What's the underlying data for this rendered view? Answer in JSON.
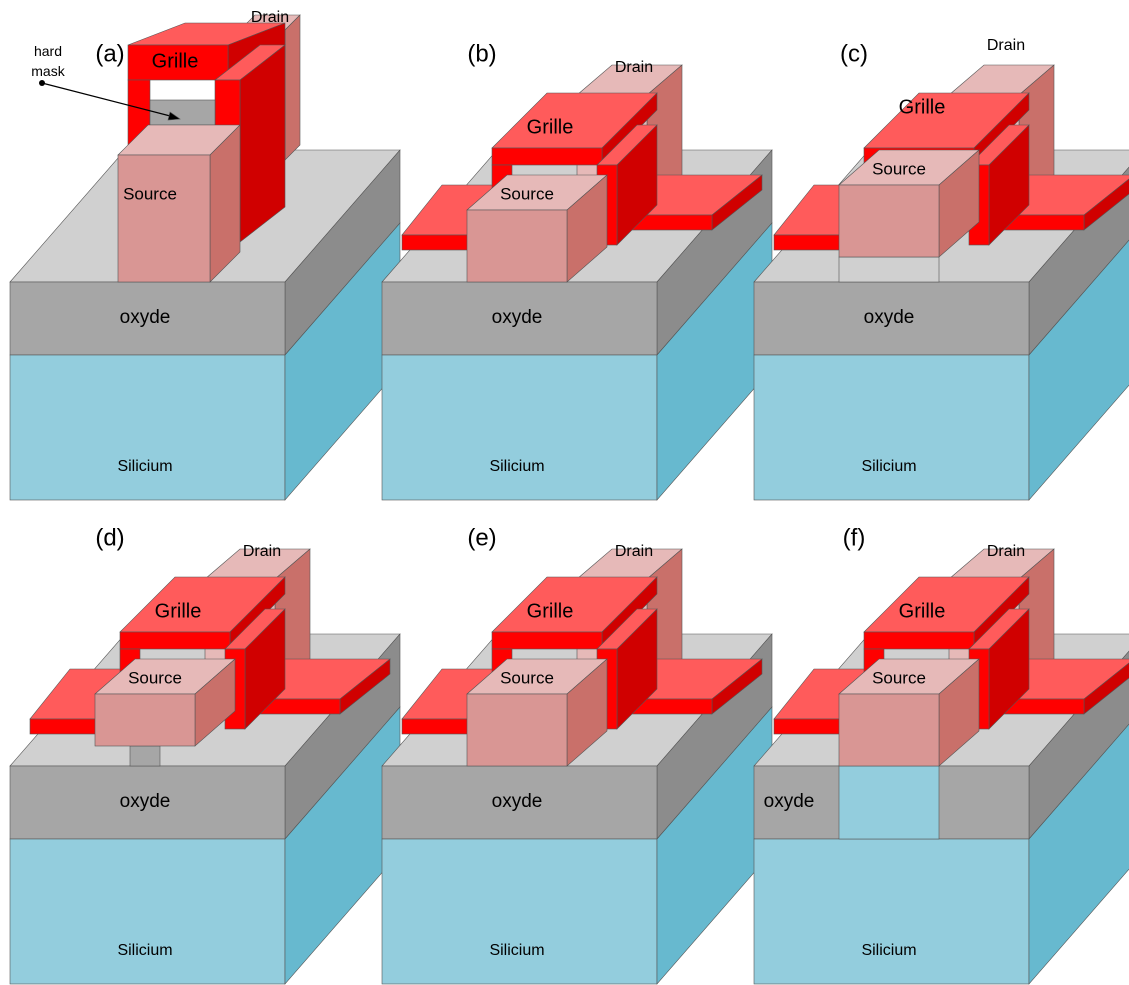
{
  "panels": [
    {
      "label": "(a)",
      "gate": "Grille",
      "source": "Source",
      "drain": "Drain",
      "oxide": "oxyde",
      "substrate": "Silicium",
      "annotation": "hard mask"
    },
    {
      "label": "(b)",
      "gate": "Grille",
      "source": "Source",
      "drain": "Drain",
      "oxide": "oxyde",
      "substrate": "Silicium"
    },
    {
      "label": "(c)",
      "gate": "Grille",
      "source": "Source",
      "drain": "Drain",
      "oxide": "oxyde",
      "substrate": "Silicium"
    },
    {
      "label": "(d)",
      "gate": "Grille",
      "source": "Source",
      "drain": "Drain",
      "oxide": "oxyde",
      "substrate": "Silicium"
    },
    {
      "label": "(e)",
      "gate": "Grille",
      "source": "Source",
      "drain": "Drain",
      "oxide": "oxyde",
      "substrate": "Silicium"
    },
    {
      "label": "(f)",
      "gate": "Grille",
      "source": "Source",
      "drain": "Drain",
      "oxide": "oxyde",
      "substrate": "Silicium"
    }
  ]
}
